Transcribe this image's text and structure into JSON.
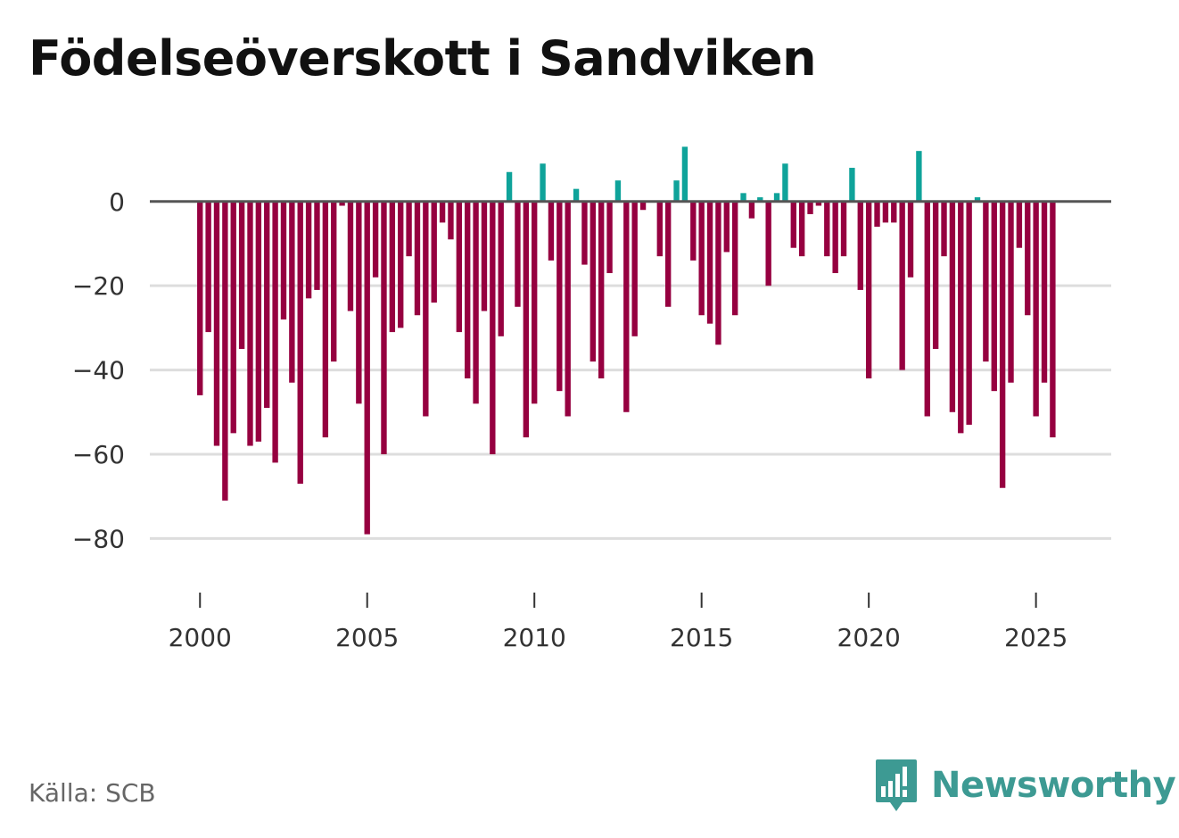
{
  "title": "Födelseöverskott i Sandviken",
  "source": "Källa: SCB",
  "brand": {
    "name": "Newsworthy",
    "icon": "bar-chart-speech-bubble-icon"
  },
  "colors": {
    "positive": "#0fa39a",
    "negative": "#960040",
    "zero_line": "#555555",
    "grid": "#dddddd",
    "axis": "#333333",
    "brand": "#3d9a93"
  },
  "chart_data": {
    "type": "bar",
    "title": "Födelseöverskott i Sandviken",
    "xlabel": "",
    "ylabel": "",
    "x_start": 2000.0,
    "x_step": 0.25,
    "x_ticks": [
      2000,
      2005,
      2010,
      2015,
      2020,
      2025
    ],
    "y_ticks": [
      0,
      -20,
      -40,
      -60,
      -80
    ],
    "y_tick_labels": [
      "0",
      "−20",
      "−40",
      "−60",
      "−80"
    ],
    "ylim": [
      -92,
      15
    ],
    "xlim": [
      1998.5,
      2027.25
    ],
    "grid": true,
    "values": [
      -46,
      -31,
      -58,
      -71,
      -55,
      -35,
      -58,
      -57,
      -49,
      -62,
      -28,
      -43,
      -67,
      -23,
      -21,
      -56,
      -38,
      -1,
      -26,
      -48,
      -79,
      -18,
      -60,
      -31,
      -30,
      -13,
      -27,
      -51,
      -24,
      -5,
      -9,
      -31,
      -42,
      -48,
      -26,
      -60,
      -32,
      7,
      -25,
      -56,
      -48,
      9,
      -14,
      -45,
      -51,
      3,
      -15,
      -38,
      -42,
      -17,
      5,
      -50,
      -32,
      -2,
      0,
      -13,
      -25,
      5,
      13,
      -14,
      -27,
      -29,
      -34,
      -12,
      -27,
      2,
      -4,
      1,
      -20,
      2,
      9,
      -11,
      -13,
      -3,
      -1,
      -13,
      -17,
      -13,
      8,
      -21,
      -42,
      -6,
      -5,
      -5,
      -40,
      -18,
      12,
      -51,
      -35,
      -13,
      -50,
      -55,
      -53,
      1,
      -38,
      -45,
      -68,
      -43,
      -11,
      -27,
      -51,
      -43,
      -56
    ]
  }
}
